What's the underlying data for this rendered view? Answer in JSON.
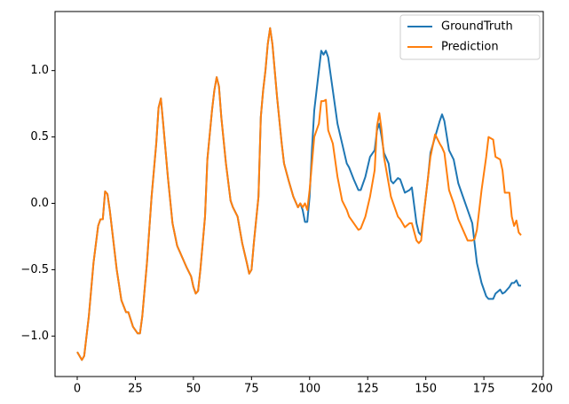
{
  "chart_data": {
    "type": "line",
    "x": [
      0,
      2,
      3,
      5,
      7,
      9,
      10,
      11,
      12,
      13,
      14,
      15,
      17,
      19,
      21,
      22,
      24,
      26,
      27,
      28,
      30,
      32,
      34,
      35,
      36,
      37,
      39,
      41,
      43,
      45,
      47,
      49,
      50,
      51,
      52,
      53,
      55,
      56,
      58,
      59,
      60,
      61,
      62,
      64,
      66,
      67,
      69,
      71,
      73,
      74,
      75,
      76,
      78,
      79,
      80,
      81,
      82,
      83,
      84,
      86,
      88,
      89,
      91,
      93,
      95,
      96,
      97,
      98,
      99,
      100,
      101,
      102,
      103,
      104,
      105,
      106,
      107,
      108,
      110,
      112,
      114,
      116,
      117,
      119,
      121,
      122,
      124,
      126,
      128,
      129,
      130,
      131,
      132,
      134,
      135,
      136,
      138,
      139,
      141,
      143,
      144,
      146,
      147,
      148,
      149,
      151,
      152,
      154,
      156,
      157,
      158,
      160,
      162,
      164,
      166,
      168,
      170,
      171,
      172,
      174,
      176,
      177,
      179,
      180,
      182,
      183,
      184,
      186,
      187,
      188,
      189,
      190,
      191
    ],
    "series": [
      {
        "name": "GroundTruth",
        "color": "#1f77b4",
        "values": [
          -1.12,
          -1.18,
          -1.15,
          -0.85,
          -0.45,
          -0.17,
          -0.12,
          -0.12,
          0.09,
          0.07,
          -0.05,
          -0.2,
          -0.5,
          -0.73,
          -0.82,
          -0.82,
          -0.93,
          -0.98,
          -0.98,
          -0.85,
          -0.45,
          0.05,
          0.45,
          0.72,
          0.79,
          0.6,
          0.2,
          -0.15,
          -0.32,
          -0.4,
          -0.48,
          -0.55,
          -0.63,
          -0.68,
          -0.66,
          -0.5,
          -0.1,
          0.33,
          0.7,
          0.85,
          0.95,
          0.88,
          0.65,
          0.3,
          0.02,
          -0.03,
          -0.1,
          -0.3,
          -0.45,
          -0.53,
          -0.5,
          -0.3,
          0.05,
          0.65,
          0.85,
          1.0,
          1.2,
          1.32,
          1.2,
          0.8,
          0.45,
          0.3,
          0.17,
          0.05,
          -0.03,
          0.0,
          -0.05,
          -0.14,
          -0.14,
          0.05,
          0.4,
          0.7,
          0.85,
          1.0,
          1.15,
          1.12,
          1.15,
          1.1,
          0.85,
          0.6,
          0.45,
          0.3,
          0.27,
          0.18,
          0.1,
          0.1,
          0.2,
          0.35,
          0.4,
          0.55,
          0.6,
          0.5,
          0.38,
          0.3,
          0.17,
          0.15,
          0.19,
          0.18,
          0.08,
          0.1,
          0.12,
          -0.15,
          -0.22,
          -0.24,
          -0.1,
          0.2,
          0.38,
          0.5,
          0.62,
          0.67,
          0.62,
          0.4,
          0.33,
          0.15,
          0.05,
          -0.05,
          -0.15,
          -0.3,
          -0.45,
          -0.6,
          -0.7,
          -0.72,
          -0.72,
          -0.68,
          -0.65,
          -0.68,
          -0.67,
          -0.63,
          -0.6,
          -0.6,
          -0.58,
          -0.62,
          -0.62
        ]
      },
      {
        "name": "Prediction",
        "color": "#ff7f0e",
        "values": [
          -1.12,
          -1.18,
          -1.15,
          -0.85,
          -0.45,
          -0.17,
          -0.12,
          -0.12,
          0.09,
          0.07,
          -0.05,
          -0.2,
          -0.5,
          -0.73,
          -0.82,
          -0.82,
          -0.93,
          -0.98,
          -0.98,
          -0.85,
          -0.45,
          0.05,
          0.45,
          0.72,
          0.79,
          0.6,
          0.2,
          -0.15,
          -0.32,
          -0.4,
          -0.48,
          -0.55,
          -0.63,
          -0.68,
          -0.66,
          -0.5,
          -0.1,
          0.33,
          0.7,
          0.85,
          0.95,
          0.88,
          0.65,
          0.3,
          0.02,
          -0.03,
          -0.1,
          -0.3,
          -0.45,
          -0.53,
          -0.5,
          -0.3,
          0.05,
          0.65,
          0.85,
          1.0,
          1.2,
          1.32,
          1.2,
          0.8,
          0.45,
          0.3,
          0.17,
          0.05,
          -0.03,
          0.0,
          -0.03,
          0.0,
          -0.05,
          0.1,
          0.3,
          0.5,
          0.55,
          0.6,
          0.77,
          0.77,
          0.78,
          0.55,
          0.45,
          0.2,
          0.02,
          -0.05,
          -0.1,
          -0.15,
          -0.2,
          -0.19,
          -0.1,
          0.05,
          0.25,
          0.58,
          0.68,
          0.55,
          0.35,
          0.15,
          0.05,
          0.0,
          -0.1,
          -0.12,
          -0.18,
          -0.15,
          -0.15,
          -0.28,
          -0.3,
          -0.28,
          -0.1,
          0.2,
          0.35,
          0.52,
          0.45,
          0.42,
          0.38,
          0.1,
          0.0,
          -0.12,
          -0.2,
          -0.28,
          -0.28,
          -0.27,
          -0.2,
          0.1,
          0.35,
          0.5,
          0.48,
          0.35,
          0.33,
          0.25,
          0.08,
          0.08,
          -0.1,
          -0.17,
          -0.13,
          -0.22,
          -0.24
        ]
      }
    ],
    "xlim": [
      -9.55,
      200.55
    ],
    "xticks": [
      0,
      25,
      50,
      75,
      100,
      125,
      150,
      175,
      200
    ],
    "ylim": [
      -1.305,
      1.445
    ],
    "yticks": [
      {
        "value": -1,
        "label": "−1.0"
      },
      {
        "value": -0.5,
        "label": "−0.5"
      },
      {
        "value": 0,
        "label": "0.0"
      },
      0.5,
      {
        "value": 1,
        "label": "1.0"
      }
    ],
    "legend": "upper right",
    "grid": false
  }
}
